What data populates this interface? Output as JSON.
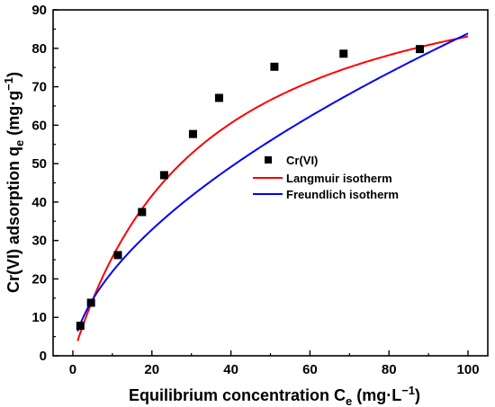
{
  "chart_data": {
    "type": "scatter",
    "xlabel_main": "Equilibrium concentration C",
    "xlabel_sub": "e",
    "xlabel_unit": " (mg·L",
    "xlabel_sup": "−1",
    "xlabel_close": ")",
    "ylabel_main": "Cr(VI) adsorption q",
    "ylabel_sub": "e",
    "ylabel_unit": " (mg·g",
    "ylabel_sup": "−1",
    "ylabel_close": ")",
    "xlim": [
      -5,
      105
    ],
    "ylim": [
      0,
      90
    ],
    "xticks": [
      0,
      20,
      40,
      60,
      80,
      100
    ],
    "yticks": [
      0,
      10,
      20,
      30,
      40,
      50,
      60,
      70,
      80,
      90
    ],
    "grid": false,
    "legend_position": "center-right",
    "series": [
      {
        "name": "Cr(VI)",
        "kind": "scatter",
        "marker": "square",
        "color": "#000000",
        "points": [
          [
            1.9,
            7.8
          ],
          [
            4.6,
            13.8
          ],
          [
            11.4,
            26.2
          ],
          [
            17.5,
            37.4
          ],
          [
            23.1,
            47.0
          ],
          [
            30.4,
            57.7
          ],
          [
            37.0,
            67.1
          ],
          [
            51.0,
            75.2
          ],
          [
            68.5,
            78.6
          ],
          [
            87.8,
            79.8
          ]
        ]
      },
      {
        "name": "Langmuir isotherm",
        "kind": "line",
        "color": "#ff0000",
        "model": "langmuir",
        "qmax": 110.6,
        "KL": 0.0302
      },
      {
        "name": "Freundlich isotherm",
        "kind": "line",
        "color": "#0000ff",
        "model": "freundlich",
        "KF": 5.72,
        "n": 1.715
      }
    ],
    "curve_x_range": [
      1.2,
      100
    ]
  }
}
